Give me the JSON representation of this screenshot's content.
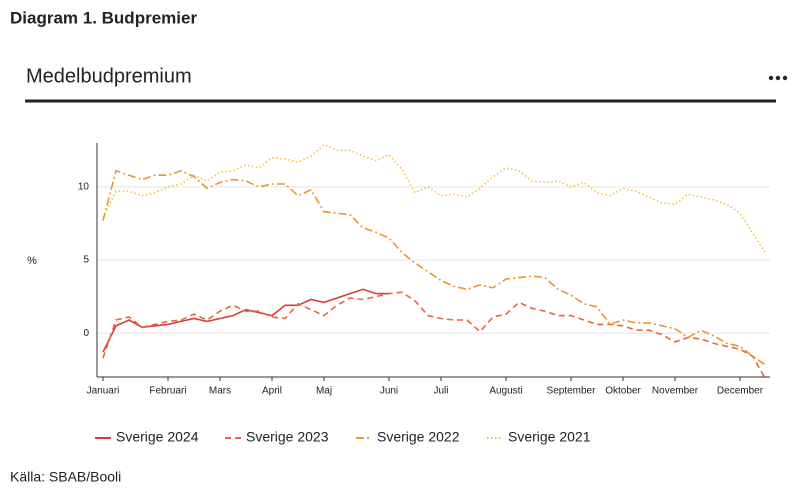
{
  "title": "Diagram 1. Budpremier",
  "source": "Källa: SBAB/Booli",
  "chart_data": {
    "type": "line",
    "title": "Medelbudpremium",
    "y_label": "%",
    "categories": [
      "Januari",
      null,
      null,
      null,
      null,
      "Februari",
      null,
      null,
      null,
      "Mars",
      null,
      null,
      null,
      "April",
      null,
      null,
      null,
      "Maj",
      null,
      null,
      null,
      null,
      "Juni",
      null,
      null,
      null,
      "Juli",
      null,
      null,
      null,
      null,
      "Augusti",
      null,
      null,
      null,
      null,
      "September",
      null,
      null,
      null,
      "Oktober",
      null,
      null,
      null,
      "November",
      null,
      null,
      null,
      null,
      "December",
      null,
      null
    ],
    "ylim": [
      -3,
      13
    ],
    "yticks": [
      0,
      5,
      10
    ],
    "grid": true,
    "series": [
      {
        "name": "Sverige 2024",
        "color": "#d93a3a",
        "style": "solid",
        "values": [
          -1.3,
          0.5,
          0.9,
          0.4,
          0.5,
          0.6,
          0.8,
          1.0,
          0.8,
          1.0,
          1.2,
          1.6,
          1.4,
          1.2,
          1.9,
          1.9,
          2.3,
          2.1,
          2.4,
          2.7,
          3.0,
          2.7,
          2.7,
          null,
          null,
          null,
          null,
          null,
          null,
          null,
          null,
          null,
          null,
          null,
          null,
          null,
          null,
          null,
          null,
          null,
          null,
          null,
          null,
          null,
          null,
          null,
          null,
          null,
          null,
          null,
          null,
          null
        ]
      },
      {
        "name": "Sverige 2023",
        "color": "#e8663a",
        "style": "dashed",
        "values": [
          -1.7,
          0.9,
          1.1,
          0.4,
          0.6,
          0.8,
          0.9,
          1.3,
          0.9,
          1.5,
          1.9,
          1.5,
          1.5,
          1.1,
          1.0,
          2.0,
          1.6,
          1.2,
          1.9,
          2.4,
          2.3,
          2.5,
          2.7,
          2.8,
          2.2,
          1.2,
          1.0,
          0.9,
          0.9,
          0.1,
          1.1,
          1.3,
          2.1,
          1.7,
          1.5,
          1.2,
          1.2,
          0.9,
          0.6,
          0.6,
          0.5,
          0.2,
          0.2,
          -0.1,
          -0.6,
          -0.3,
          -0.4,
          -0.7,
          -0.9,
          -1.1,
          -1.6,
          -3.2
        ]
      },
      {
        "name": "Sverige 2022",
        "color": "#e8962e",
        "style": "dashdot",
        "values": [
          7.7,
          11.1,
          10.8,
          10.5,
          10.8,
          10.8,
          11.1,
          10.7,
          9.9,
          10.3,
          10.5,
          10.4,
          10.0,
          10.2,
          10.2,
          9.4,
          9.8,
          8.3,
          8.2,
          8.1,
          7.2,
          6.9,
          6.5,
          5.5,
          4.8,
          4.2,
          3.6,
          3.2,
          3.0,
          3.3,
          3.1,
          3.7,
          3.8,
          3.9,
          3.8,
          3.0,
          2.6,
          2.0,
          1.8,
          0.6,
          0.9,
          0.7,
          0.7,
          0.5,
          0.3,
          -0.3,
          0.2,
          -0.2,
          -0.7,
          -0.9,
          -1.6,
          -2.2
        ]
      },
      {
        "name": "Sverige 2021",
        "color": "#f2c230",
        "style": "dotted",
        "values": [
          7.9,
          9.7,
          9.7,
          9.4,
          9.6,
          10.0,
          10.2,
          10.8,
          10.4,
          11.0,
          11.1,
          11.5,
          11.3,
          12.0,
          11.9,
          11.7,
          12.1,
          12.9,
          12.5,
          12.5,
          12.1,
          11.8,
          12.2,
          11.2,
          9.6,
          10.0,
          9.4,
          9.5,
          9.3,
          9.9,
          10.7,
          11.3,
          11.1,
          10.4,
          10.3,
          10.4,
          10.0,
          10.3,
          9.6,
          9.4,
          9.9,
          9.7,
          9.3,
          8.9,
          8.8,
          9.5,
          9.3,
          9.1,
          8.8,
          8.2,
          6.8,
          5.4
        ]
      }
    ]
  }
}
